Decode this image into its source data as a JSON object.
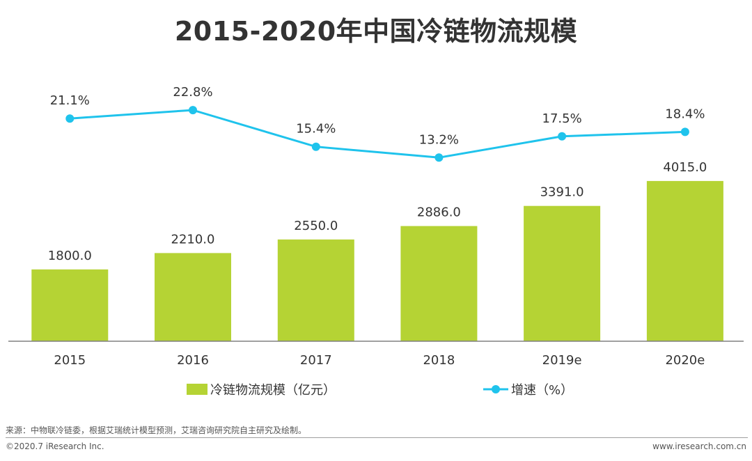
{
  "title": "2015-2020年中国冷链物流规模",
  "chart_data": {
    "type": "bar",
    "title": "2015-2020年中国冷链物流规模",
    "categories": [
      "2015",
      "2016",
      "2017",
      "2018",
      "2019e",
      "2020e"
    ],
    "series": [
      {
        "name": "冷链物流规模（亿元）",
        "type": "bar",
        "values": [
          1800.0,
          2210.0,
          2550.0,
          2886.0,
          3391.0,
          4015.0
        ],
        "value_labels": [
          "1800.0",
          "2210.0",
          "2550.0",
          "2886.0",
          "3391.0",
          "4015.0"
        ],
        "color": "#b5d334"
      },
      {
        "name": "增速（%）",
        "type": "line",
        "values": [
          21.1,
          22.8,
          15.4,
          13.2,
          17.5,
          18.4
        ],
        "value_labels": [
          "21.1%",
          "22.8%",
          "15.4%",
          "13.2%",
          "17.5%",
          "18.4%"
        ],
        "color": "#1fc3ec"
      }
    ],
    "legend_position": "bottom",
    "grid": false
  },
  "footer": {
    "source": "来源：中物联冷链委，根据艾瑞统计模型预测，艾瑞咨询研究院自主研究及绘制。",
    "copyright": "©2020.7 iResearch Inc.",
    "site": "www.iresearch.com.cn"
  }
}
